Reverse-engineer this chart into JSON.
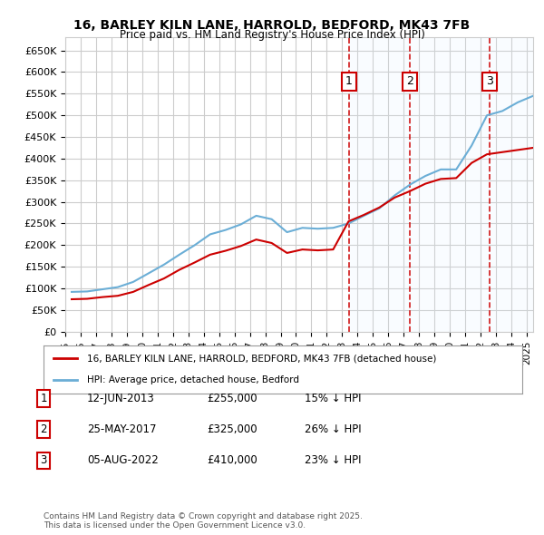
{
  "title": "16, BARLEY KILN LANE, HARROLD, BEDFORD, MK43 7FB",
  "subtitle": "Price paid vs. HM Land Registry's House Price Index (HPI)",
  "xlabel": "",
  "ylabel": "",
  "ylim": [
    0,
    680000
  ],
  "yticks": [
    0,
    50000,
    100000,
    150000,
    200000,
    250000,
    300000,
    350000,
    400000,
    450000,
    500000,
    550000,
    600000,
    650000
  ],
  "ytick_labels": [
    "£0",
    "£50K",
    "£100K",
    "£150K",
    "£200K",
    "£250K",
    "£300K",
    "£350K",
    "£400K",
    "£450K",
    "£500K",
    "£550K",
    "£600K",
    "£650K"
  ],
  "hpi_color": "#6baed6",
  "price_color": "#cc0000",
  "vline_color": "#cc0000",
  "vline_style": "--",
  "shade_color": "#ddeeff",
  "transaction_dates": [
    "2013-06-12",
    "2017-05-25",
    "2022-08-05"
  ],
  "transaction_prices": [
    255000,
    325000,
    410000
  ],
  "transaction_labels": [
    "1",
    "2",
    "3"
  ],
  "legend_price_label": "16, BARLEY KILN LANE, HARROLD, BEDFORD, MK43 7FB (detached house)",
  "legend_hpi_label": "HPI: Average price, detached house, Bedford",
  "table_data": [
    [
      "1",
      "12-JUN-2013",
      "£255,000",
      "15% ↓ HPI"
    ],
    [
      "2",
      "25-MAY-2017",
      "£325,000",
      "26% ↓ HPI"
    ],
    [
      "3",
      "05-AUG-2022",
      "£410,000",
      "23% ↓ HPI"
    ]
  ],
  "footnote": "Contains HM Land Registry data © Crown copyright and database right 2025.\nThis data is licensed under the Open Government Licence v3.0.",
  "background_color": "#ffffff",
  "grid_color": "#cccccc"
}
